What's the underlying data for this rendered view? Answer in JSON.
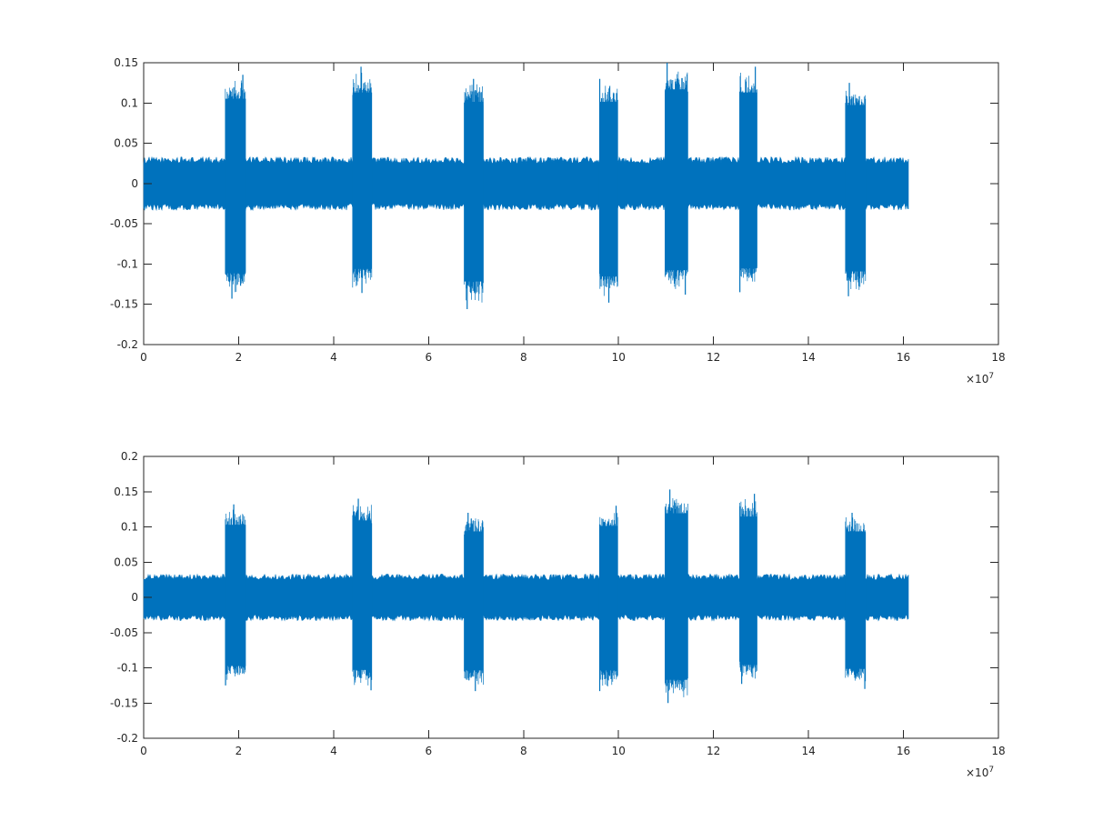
{
  "colors": {
    "signal": "#0072BD",
    "axes": "#262626",
    "background": "#ffffff"
  },
  "chart_data": [
    {
      "type": "line",
      "xlim": [
        0,
        18
      ],
      "ylim": [
        -0.2,
        0.15
      ],
      "x_multiplier_label": "×10",
      "x_multiplier_exponent": "7",
      "xticks": [
        {
          "v": 0,
          "label": "0"
        },
        {
          "v": 2,
          "label": "2"
        },
        {
          "v": 4,
          "label": "4"
        },
        {
          "v": 6,
          "label": "6"
        },
        {
          "v": 8,
          "label": "8"
        },
        {
          "v": 10,
          "label": "10"
        },
        {
          "v": 12,
          "label": "12"
        },
        {
          "v": 14,
          "label": "14"
        },
        {
          "v": 16,
          "label": "16"
        },
        {
          "v": 18,
          "label": "18"
        }
      ],
      "yticks": [
        {
          "v": 0.15,
          "label": "0.15"
        },
        {
          "v": 0.1,
          "label": "0.1"
        },
        {
          "v": 0.05,
          "label": "0.05"
        },
        {
          "v": 0,
          "label": "0"
        },
        {
          "v": -0.05,
          "label": "-0.05"
        },
        {
          "v": -0.1,
          "label": "-0.1"
        },
        {
          "v": -0.15,
          "label": "-0.15"
        },
        {
          "v": -0.2,
          "label": "-0.2"
        }
      ],
      "signal_end": 16.1,
      "baseline_envelope": [
        -0.03,
        0.03
      ],
      "bursts": [
        {
          "start": 1.72,
          "end": 2.15,
          "max": 0.135,
          "min": -0.143
        },
        {
          "start": 4.4,
          "end": 4.8,
          "max": 0.145,
          "min": -0.136
        },
        {
          "start": 6.75,
          "end": 7.15,
          "max": 0.13,
          "min": -0.156
        },
        {
          "start": 9.6,
          "end": 9.98,
          "max": 0.13,
          "min": -0.148
        },
        {
          "start": 10.98,
          "end": 11.45,
          "max": 0.15,
          "min": -0.138
        },
        {
          "start": 12.55,
          "end": 12.92,
          "max": 0.145,
          "min": -0.135
        },
        {
          "start": 14.78,
          "end": 15.2,
          "max": 0.125,
          "min": -0.14
        }
      ]
    },
    {
      "type": "line",
      "xlim": [
        0,
        18
      ],
      "ylim": [
        -0.2,
        0.2
      ],
      "x_multiplier_label": "×10",
      "x_multiplier_exponent": "7",
      "xticks": [
        {
          "v": 0,
          "label": "0"
        },
        {
          "v": 2,
          "label": "2"
        },
        {
          "v": 4,
          "label": "4"
        },
        {
          "v": 6,
          "label": "6"
        },
        {
          "v": 8,
          "label": "8"
        },
        {
          "v": 10,
          "label": "10"
        },
        {
          "v": 12,
          "label": "12"
        },
        {
          "v": 14,
          "label": "14"
        },
        {
          "v": 16,
          "label": "16"
        },
        {
          "v": 18,
          "label": "18"
        }
      ],
      "yticks": [
        {
          "v": 0.2,
          "label": "0.2"
        },
        {
          "v": 0.15,
          "label": "0.15"
        },
        {
          "v": 0.1,
          "label": "0.1"
        },
        {
          "v": 0.05,
          "label": "0.05"
        },
        {
          "v": 0,
          "label": "0"
        },
        {
          "v": -0.05,
          "label": "-0.05"
        },
        {
          "v": -0.1,
          "label": "-0.1"
        },
        {
          "v": -0.15,
          "label": "-0.15"
        },
        {
          "v": -0.2,
          "label": "-0.2"
        }
      ],
      "signal_end": 16.1,
      "baseline_envelope": [
        -0.03,
        0.03
      ],
      "bursts": [
        {
          "start": 1.72,
          "end": 2.15,
          "max": 0.132,
          "min": -0.125
        },
        {
          "start": 4.4,
          "end": 4.8,
          "max": 0.14,
          "min": -0.132
        },
        {
          "start": 6.75,
          "end": 7.15,
          "max": 0.12,
          "min": -0.133
        },
        {
          "start": 9.6,
          "end": 9.98,
          "max": 0.13,
          "min": -0.133
        },
        {
          "start": 10.98,
          "end": 11.45,
          "max": 0.153,
          "min": -0.15
        },
        {
          "start": 12.55,
          "end": 12.92,
          "max": 0.147,
          "min": -0.123
        },
        {
          "start": 14.78,
          "end": 15.2,
          "max": 0.12,
          "min": -0.13
        }
      ]
    }
  ]
}
